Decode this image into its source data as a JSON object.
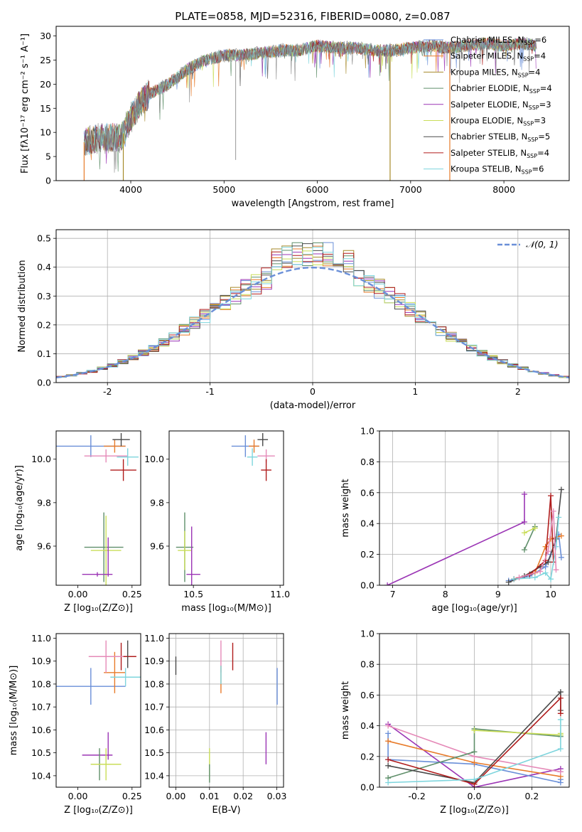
{
  "figure_title": "PLATE=0858, MJD=52316, FIBERID=0080, z=0.087",
  "colors": {
    "chabrier_miles": "#6a8fd8",
    "salpeter_miles": "#e87b2a",
    "kroupa_miles": "#a68a2a",
    "chabrier_elodie": "#5f8f6a",
    "salpeter_elodie": "#9b35b5",
    "kroupa_elodie": "#c9dd58",
    "chabrier_stelib": "#4a4a4a",
    "salpeter_stelib": "#b01c1c",
    "kroupa_stelib": "#7ed5dd",
    "pink": "#e58ab8",
    "gauss": "#6a8fd8"
  },
  "chart_data": [
    {
      "id": "spectrum",
      "type": "line",
      "title": "PLATE=0858, MJD=52316, FIBERID=0080, z=0.087",
      "xlabel": "wavelength [Angstrom, rest frame]",
      "ylabel": "Flux [fλ10⁻¹⁷ erg cm⁻² s⁻¹ A⁻¹]",
      "xlim": [
        3200,
        8700
      ],
      "ylim": [
        0,
        32
      ],
      "xticks": [
        4000,
        5000,
        6000,
        7000,
        8000
      ],
      "yticks": [
        0,
        5,
        10,
        15,
        20,
        25,
        30
      ],
      "grid": false,
      "legend_position": "right",
      "continuum_points": [
        [
          3500,
          8
        ],
        [
          3700,
          9
        ],
        [
          3900,
          9
        ],
        [
          4000,
          13
        ],
        [
          4100,
          16
        ],
        [
          4200,
          18
        ],
        [
          4400,
          20
        ],
        [
          4600,
          23
        ],
        [
          4800,
          25
        ],
        [
          5000,
          26
        ],
        [
          5200,
          26
        ],
        [
          5400,
          26.5
        ],
        [
          5600,
          27
        ],
        [
          5800,
          27
        ],
        [
          6000,
          28
        ],
        [
          6200,
          27.5
        ],
        [
          6400,
          27.5
        ],
        [
          6600,
          27
        ],
        [
          6800,
          27
        ],
        [
          7000,
          27.5
        ],
        [
          7200,
          28
        ],
        [
          7400,
          27.5
        ],
        [
          7600,
          28
        ],
        [
          7800,
          28.5
        ],
        [
          8000,
          28
        ],
        [
          8200,
          28.5
        ],
        [
          8350,
          28
        ]
      ],
      "series": [
        {
          "name": "Chabrier MILES, N",
          "sub": "SSP",
          "n": "=6",
          "color": "#6a8fd8"
        },
        {
          "name": "Salpeter MILES, N",
          "sub": "SSP",
          "n": "=4",
          "color": "#e87b2a"
        },
        {
          "name": "Kroupa MILES, N",
          "sub": "SSP",
          "n": "=4",
          "color": "#a68a2a"
        },
        {
          "name": "Chabrier ELODIE, N",
          "sub": "SSP",
          "n": "=4",
          "color": "#5f8f6a"
        },
        {
          "name": "Salpeter ELODIE, N",
          "sub": "SSP",
          "n": "=3",
          "color": "#9b35b5"
        },
        {
          "name": "Kroupa ELODIE, N",
          "sub": "SSP",
          "n": "=3",
          "color": "#c9dd58"
        },
        {
          "name": "Chabrier STELIB, N",
          "sub": "SSP",
          "n": "=5",
          "color": "#4a4a4a"
        },
        {
          "name": "Salpeter STELIB, N",
          "sub": "SSP",
          "n": "=4",
          "color": "#b01c1c"
        },
        {
          "name": "Kroupa STELIB, N",
          "sub": "SSP",
          "n": "=6",
          "color": "#7ed5dd"
        }
      ]
    },
    {
      "id": "residuals",
      "type": "line",
      "xlabel": "(data-model)/error",
      "ylabel": "Normed distribution",
      "xlim": [
        -2.5,
        2.5
      ],
      "ylim": [
        0,
        0.53
      ],
      "xticks": [
        -2,
        -1,
        0,
        1,
        2
      ],
      "yticks": [
        0.0,
        0.1,
        0.2,
        0.3,
        0.4,
        0.5
      ],
      "grid": true,
      "legend_label": "𝒩(0, 1)",
      "bin_width": 0.1,
      "gaussian": {
        "mean": 0,
        "sigma": 1
      },
      "histogram_series_count": 9
    },
    {
      "id": "z_age",
      "type": "scatter",
      "xlabel": "Z [log₁₀(Z/Z⊙)]",
      "ylabel": "age  [log₁₀(age/yr)]",
      "xlim": [
        -0.1,
        0.29
      ],
      "ylim": [
        9.42,
        10.13
      ],
      "xticks": [
        0.0,
        0.25
      ],
      "yticks": [
        9.6,
        9.8,
        10.0
      ],
      "grid": false,
      "points": [
        {
          "x": 0.06,
          "y": 10.06,
          "xerr": 0.16,
          "yerr": 0.05,
          "color": "#6a8fd8"
        },
        {
          "x": 0.17,
          "y": 10.06,
          "xerr": 0.05,
          "yerr": 0.03,
          "color": "#e87b2a"
        },
        {
          "x": 0.2,
          "y": 10.09,
          "xerr": 0.04,
          "yerr": 0.03,
          "color": "#4a4a4a"
        },
        {
          "x": 0.13,
          "y": 10.015,
          "xerr": 0.1,
          "yerr": 0.03,
          "color": "#e58ab8"
        },
        {
          "x": 0.23,
          "y": 10.01,
          "xerr": 0.05,
          "yerr": 0.04,
          "color": "#7ed5dd"
        },
        {
          "x": 0.21,
          "y": 9.95,
          "xerr": 0.06,
          "yerr": 0.05,
          "color": "#b01c1c"
        },
        {
          "x": 0.12,
          "y": 9.595,
          "xerr": 0.09,
          "yerr": 0.16,
          "color": "#5f8f6a"
        },
        {
          "x": 0.13,
          "y": 9.58,
          "xerr": 0.07,
          "yerr": 0.16,
          "color": "#c9dd58"
        },
        {
          "x": 0.09,
          "y": 9.47,
          "xerr": 0.07,
          "yerr": 0.01,
          "color": "#9b35b5"
        },
        {
          "x": 0.14,
          "y": 9.55,
          "xerr": 0.0,
          "yerr": 0.09,
          "color": "#9b35b5"
        }
      ]
    },
    {
      "id": "mass_age",
      "type": "scatter",
      "xlabel": "mass [log₁₀(M/M⊙)]",
      "xlim": [
        10.36,
        11.02
      ],
      "ylim": [
        9.42,
        10.13
      ],
      "xticks": [
        10.5,
        11.0
      ],
      "yticks": [
        9.6,
        9.8,
        10.0
      ],
      "grid": false,
      "points": [
        {
          "x": 10.8,
          "y": 10.06,
          "xerr": 0.08,
          "yerr": 0.05,
          "color": "#6a8fd8"
        },
        {
          "x": 10.85,
          "y": 10.06,
          "xerr": 0.03,
          "yerr": 0.03,
          "color": "#e87b2a"
        },
        {
          "x": 10.9,
          "y": 10.09,
          "xerr": 0.03,
          "yerr": 0.03,
          "color": "#4a4a4a"
        },
        {
          "x": 10.92,
          "y": 10.015,
          "xerr": 0.05,
          "yerr": 0.03,
          "color": "#e58ab8"
        },
        {
          "x": 10.84,
          "y": 10.01,
          "xerr": 0.03,
          "yerr": 0.04,
          "color": "#7ed5dd"
        },
        {
          "x": 10.92,
          "y": 9.95,
          "xerr": 0.03,
          "yerr": 0.05,
          "color": "#b01c1c"
        },
        {
          "x": 10.45,
          "y": 9.595,
          "xerr": 0.05,
          "yerr": 0.16,
          "color": "#5f8f6a"
        },
        {
          "x": 10.45,
          "y": 9.58,
          "xerr": 0.04,
          "yerr": 0.09,
          "color": "#c9dd58"
        },
        {
          "x": 10.5,
          "y": 9.47,
          "xerr": 0.04,
          "yerr": 0.0,
          "color": "#9b35b5"
        },
        {
          "x": 10.49,
          "y": 9.55,
          "xerr": 0.0,
          "yerr": 0.14,
          "color": "#9b35b5"
        }
      ]
    },
    {
      "id": "age_weight",
      "type": "line",
      "xlabel": "age  [log₁₀(age/yr)]",
      "ylabel": "mass weight",
      "xlim": [
        6.75,
        10.35
      ],
      "ylim": [
        0.0,
        1.0
      ],
      "xticks": [
        7,
        8,
        9,
        10
      ],
      "yticks": [
        0.0,
        0.2,
        0.4,
        0.6,
        0.8,
        1.0
      ],
      "grid": true,
      "series": [
        {
          "color": "#9b35b5",
          "x": [
            6.9,
            9.5,
            9.5
          ],
          "y": [
            0.0,
            0.41,
            0.59
          ]
        },
        {
          "color": "#6a8fd8",
          "x": [
            9.2,
            9.6,
            9.9,
            10.0,
            10.15,
            10.2
          ],
          "y": [
            0.03,
            0.06,
            0.12,
            0.2,
            0.33,
            0.18
          ]
        },
        {
          "color": "#e87b2a",
          "x": [
            9.3,
            9.7,
            9.9,
            10.0,
            10.2
          ],
          "y": [
            0.04,
            0.08,
            0.25,
            0.3,
            0.32
          ]
        },
        {
          "color": "#5f8f6a",
          "x": [
            9.5,
            9.7
          ],
          "y": [
            0.23,
            0.38
          ]
        },
        {
          "color": "#c9dd58",
          "x": [
            9.5,
            9.7
          ],
          "y": [
            0.34,
            0.37
          ]
        },
        {
          "color": "#4a4a4a",
          "x": [
            9.2,
            9.5,
            9.8,
            9.95,
            10.1,
            10.2
          ],
          "y": [
            0.02,
            0.06,
            0.12,
            0.15,
            0.3,
            0.62
          ]
        },
        {
          "color": "#b01c1c",
          "x": [
            9.3,
            9.6,
            9.9,
            10.0,
            10.05
          ],
          "y": [
            0.04,
            0.07,
            0.16,
            0.58,
            0.15
          ]
        },
        {
          "color": "#7ed5dd",
          "x": [
            9.3,
            9.7,
            9.9,
            10.0,
            10.1,
            10.15
          ],
          "y": [
            0.04,
            0.05,
            0.08,
            0.04,
            0.25,
            0.44
          ]
        },
        {
          "color": "#e58ab8",
          "x": [
            9.4,
            9.8,
            9.95,
            10.05,
            10.1
          ],
          "y": [
            0.05,
            0.09,
            0.22,
            0.48,
            0.1
          ]
        }
      ]
    },
    {
      "id": "z_mass",
      "type": "scatter",
      "xlabel": "Z [log₁₀(Z/Z⊙)]",
      "ylabel": "mass [log₁₀(M/M⊙)]",
      "xlim": [
        -0.1,
        0.29
      ],
      "ylim": [
        10.35,
        11.02
      ],
      "xticks": [
        0.0,
        0.25
      ],
      "yticks": [
        10.4,
        10.5,
        10.6,
        10.7,
        10.8,
        10.9,
        11.0
      ],
      "grid": false,
      "points": [
        {
          "x": 0.06,
          "y": 10.79,
          "xerr": 0.16,
          "yerr": 0.08,
          "color": "#6a8fd8"
        },
        {
          "x": 0.17,
          "y": 10.85,
          "xerr": 0.05,
          "yerr": 0.09,
          "color": "#e87b2a"
        },
        {
          "x": 0.2,
          "y": 10.92,
          "xerr": 0.07,
          "yerr": 0.06,
          "color": "#b01c1c"
        },
        {
          "x": 0.13,
          "y": 10.92,
          "xerr": 0.08,
          "yerr": 0.07,
          "color": "#e58ab8"
        },
        {
          "x": 0.22,
          "y": 10.83,
          "xerr": 0.07,
          "yerr": 0.04,
          "color": "#7ed5dd"
        },
        {
          "x": 0.23,
          "y": 10.93,
          "xerr": 0.0,
          "yerr": 0.06,
          "color": "#4a4a4a"
        },
        {
          "x": 0.09,
          "y": 10.49,
          "xerr": 0.07,
          "yerr": 0.0,
          "color": "#9b35b5"
        },
        {
          "x": 0.14,
          "y": 10.53,
          "xerr": 0.0,
          "yerr": 0.06,
          "color": "#9b35b5"
        },
        {
          "x": 0.1,
          "y": 10.45,
          "xerr": 0.04,
          "yerr": 0.07,
          "color": "#5f8f6a"
        },
        {
          "x": 0.13,
          "y": 10.45,
          "xerr": 0.07,
          "yerr": 0.07,
          "color": "#c9dd58"
        }
      ]
    },
    {
      "id": "ebv_mass",
      "type": "scatter",
      "xlabel": "E(B-V)",
      "xlim": [
        -0.002,
        0.032
      ],
      "ylim": [
        10.35,
        11.02
      ],
      "xticks": [
        0.0,
        0.01,
        0.02,
        0.03
      ],
      "yticks": [
        10.4,
        10.5,
        10.6,
        10.7,
        10.8,
        10.9,
        11.0
      ],
      "grid": true,
      "points": [
        {
          "x": 0.0,
          "y": 10.88,
          "xerr": 0.0,
          "yerr": 0.04,
          "color": "#4a4a4a"
        },
        {
          "x": 0.0134,
          "y": 10.92,
          "xerr": 0.0,
          "yerr": 0.07,
          "color": "#e58ab8"
        },
        {
          "x": 0.0134,
          "y": 10.82,
          "xerr": 0.0,
          "yerr": 0.06,
          "color": "#e87b2a"
        },
        {
          "x": 0.0134,
          "y": 10.84,
          "xerr": 0.0,
          "yerr": 0.04,
          "color": "#7ed5dd"
        },
        {
          "x": 0.0169,
          "y": 10.92,
          "xerr": 0.0,
          "yerr": 0.06,
          "color": "#b01c1c"
        },
        {
          "x": 0.0301,
          "y": 10.79,
          "xerr": 0.0,
          "yerr": 0.08,
          "color": "#6a8fd8"
        },
        {
          "x": 0.0268,
          "y": 10.52,
          "xerr": 0.0,
          "yerr": 0.07,
          "color": "#9b35b5"
        },
        {
          "x": 0.01,
          "y": 10.45,
          "xerr": 0.0,
          "yerr": 0.07,
          "color": "#c9dd58"
        },
        {
          "x": 0.01,
          "y": 10.41,
          "xerr": 0.0,
          "yerr": 0.04,
          "color": "#5f8f6a"
        }
      ]
    },
    {
      "id": "z_weight",
      "type": "line",
      "xlabel": "Z [log₁₀(Z/Z⊙)]",
      "ylabel": "mass weight",
      "xlim": [
        -0.33,
        0.33
      ],
      "ylim": [
        0.0,
        1.0
      ],
      "xticks": [
        -0.2,
        0.0,
        0.2
      ],
      "yticks": [
        0.0,
        0.2,
        0.4,
        0.6,
        0.8,
        1.0
      ],
      "grid": true,
      "series": [
        {
          "color": "#9b35b5",
          "x": [
            -0.3,
            0.0,
            0.3,
            0.3
          ],
          "y": [
            0.41,
            0.0,
            0.12,
            0.1
          ]
        },
        {
          "color": "#6a8fd8",
          "x": [
            -0.3,
            -0.3,
            0.0,
            0.3,
            0.3
          ],
          "y": [
            0.35,
            0.18,
            0.15,
            0.03,
            0.05
          ]
        },
        {
          "color": "#e87b2a",
          "x": [
            -0.3,
            0.0,
            0.3
          ],
          "y": [
            0.3,
            0.16,
            0.07
          ]
        },
        {
          "color": "#e58ab8",
          "x": [
            -0.3,
            0.0,
            0.3
          ],
          "y": [
            0.4,
            0.2,
            0.1
          ]
        },
        {
          "color": "#5f8f6a",
          "x": [
            -0.3,
            0.0,
            0.0,
            0.3
          ],
          "y": [
            0.06,
            0.23,
            0.38,
            0.33
          ]
        },
        {
          "color": "#c9dd58",
          "x": [
            0.0,
            0.3,
            0.3
          ],
          "y": [
            0.37,
            0.34,
            0.35
          ]
        },
        {
          "color": "#4a4a4a",
          "x": [
            -0.3,
            0.0,
            0.3,
            0.3
          ],
          "y": [
            0.14,
            0.03,
            0.62,
            0.5
          ]
        },
        {
          "color": "#b01c1c",
          "x": [
            -0.3,
            0.0,
            0.3,
            0.3
          ],
          "y": [
            0.18,
            0.02,
            0.58,
            0.48
          ]
        },
        {
          "color": "#7ed5dd",
          "x": [
            -0.3,
            0.0,
            0.3,
            0.3
          ],
          "y": [
            0.03,
            0.05,
            0.25,
            0.44
          ]
        }
      ]
    }
  ]
}
